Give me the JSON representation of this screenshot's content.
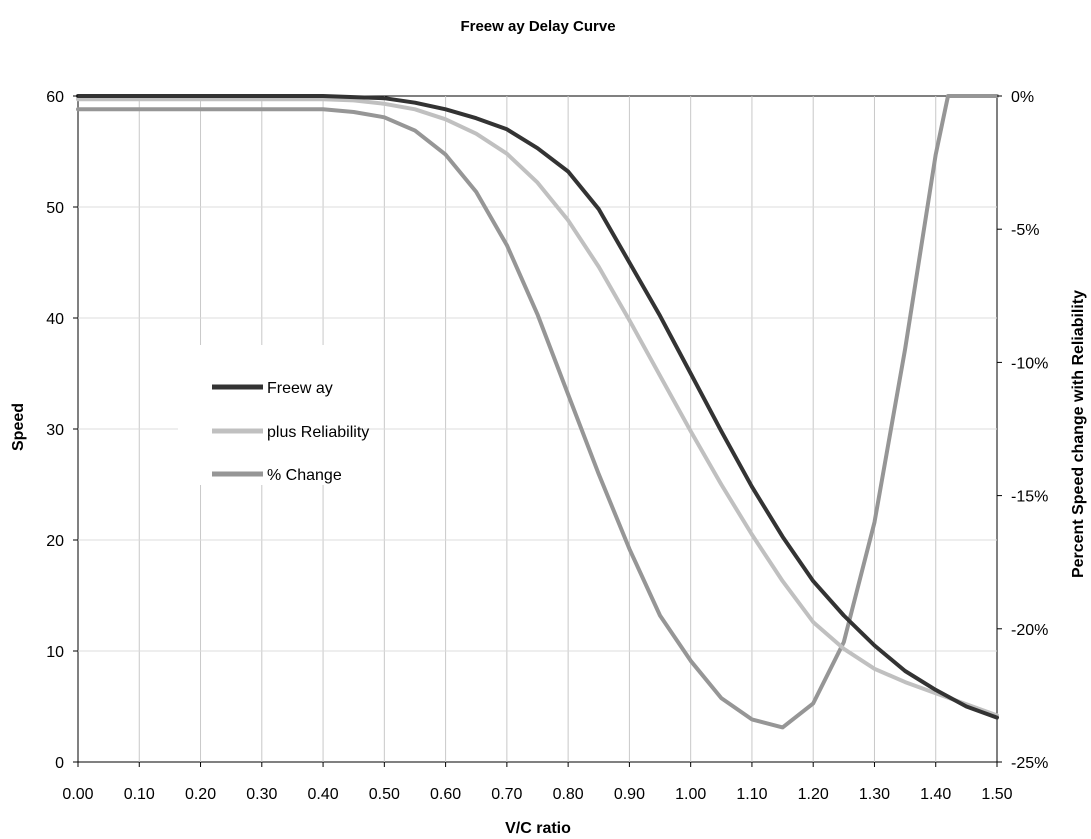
{
  "chart_data": {
    "type": "line",
    "title": "Freew ay Delay Curve",
    "xlabel": "V/C ratio",
    "ylabel": "Speed",
    "y2label": "Percent Speed change with Reliability",
    "xlim": [
      0,
      1.5
    ],
    "ylim": [
      0,
      60
    ],
    "y2lim": [
      -25,
      0
    ],
    "x_ticks": [
      0,
      0.1,
      0.2,
      0.3,
      0.4,
      0.5,
      0.6,
      0.7,
      0.8,
      0.9,
      1.0,
      1.1,
      1.2,
      1.3,
      1.4,
      1.5
    ],
    "x_tick_labels": [
      "0.00",
      "0.10",
      "0.20",
      "0.30",
      "0.40",
      "0.50",
      "0.60",
      "0.70",
      "0.80",
      "0.90",
      "1.00",
      "1.10",
      "1.20",
      "1.30",
      "1.40",
      "1.50"
    ],
    "y_ticks": [
      0,
      10,
      20,
      30,
      40,
      50,
      60
    ],
    "y_tick_labels": [
      "0",
      "10",
      "20",
      "30",
      "40",
      "50",
      "60"
    ],
    "y2_ticks": [
      -25,
      -20,
      -15,
      -10,
      -5,
      0
    ],
    "y2_tick_labels": [
      "-25%",
      "-20%",
      "-15%",
      "-10%",
      "-5%",
      "0%"
    ],
    "grid": "vertical",
    "legend": {
      "placement": "center-left"
    },
    "series": [
      {
        "name": "Freew ay",
        "axis": "left",
        "color": "#333333",
        "x": [
          0.0,
          0.4,
          0.45,
          0.5,
          0.55,
          0.6,
          0.65,
          0.7,
          0.75,
          0.8,
          0.85,
          0.9,
          0.95,
          1.0,
          1.05,
          1.1,
          1.15,
          1.2,
          1.25,
          1.3,
          1.35,
          1.4,
          1.45,
          1.5
        ],
        "y": [
          60,
          60,
          59.9,
          59.8,
          59.4,
          58.8,
          58.0,
          57.0,
          55.3,
          53.2,
          49.8,
          45.0,
          40.2,
          35.0,
          29.8,
          24.8,
          20.3,
          16.3,
          13.2,
          10.5,
          8.2,
          6.5,
          5.0,
          4.0
        ]
      },
      {
        "name": "plus Reliability",
        "axis": "left",
        "color": "#c0c0c0",
        "x": [
          0.0,
          0.4,
          0.45,
          0.5,
          0.55,
          0.6,
          0.65,
          0.7,
          0.75,
          0.8,
          0.85,
          0.9,
          0.95,
          1.0,
          1.05,
          1.1,
          1.15,
          1.2,
          1.25,
          1.3,
          1.35,
          1.4,
          1.45,
          1.5
        ],
        "y": [
          59.7,
          59.7,
          59.6,
          59.3,
          58.8,
          57.9,
          56.6,
          54.8,
          52.2,
          48.8,
          44.6,
          39.8,
          34.8,
          29.8,
          25.0,
          20.5,
          16.3,
          12.6,
          10.2,
          8.4,
          7.2,
          6.2,
          5.2,
          4.2
        ]
      },
      {
        "name": "% Change",
        "axis": "right",
        "color": "#969696",
        "x": [
          0.0,
          0.4,
          0.45,
          0.5,
          0.55,
          0.6,
          0.65,
          0.7,
          0.75,
          0.8,
          0.85,
          0.9,
          0.95,
          1.0,
          1.05,
          1.1,
          1.15,
          1.2,
          1.25,
          1.3,
          1.35,
          1.4,
          1.42,
          1.45,
          1.5
        ],
        "y": [
          -0.5,
          -0.5,
          -0.6,
          -0.8,
          -1.3,
          -2.2,
          -3.6,
          -5.6,
          -8.2,
          -11.2,
          -14.2,
          -17.0,
          -19.5,
          -21.2,
          -22.6,
          -23.4,
          -23.7,
          -22.8,
          -20.5,
          -16.0,
          -9.5,
          -2.2,
          0.0,
          0.0,
          0.0
        ]
      }
    ]
  }
}
